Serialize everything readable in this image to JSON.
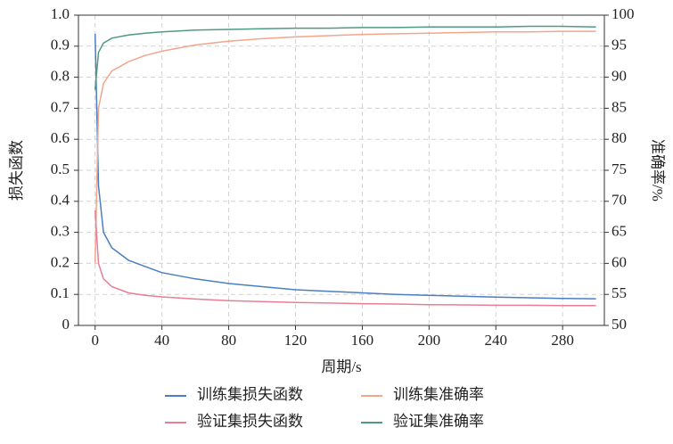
{
  "chart_data": {
    "type": "line",
    "x_label": "周期/s",
    "y_label": "损失函数",
    "y2_label": "准确率/%",
    "x": [
      0,
      2,
      5,
      10,
      20,
      30,
      40,
      60,
      80,
      100,
      120,
      140,
      160,
      180,
      200,
      220,
      240,
      260,
      280,
      300
    ],
    "series": [
      {
        "name": "训练集损失函数",
        "color": "#4a7fc1",
        "values": [
          0.94,
          0.45,
          0.3,
          0.25,
          0.21,
          0.19,
          0.17,
          0.15,
          0.135,
          0.125,
          0.115,
          0.11,
          0.105,
          0.1,
          0.097,
          0.094,
          0.091,
          0.089,
          0.087,
          0.086
        ]
      },
      {
        "name": "训练集准确率",
        "color": "#f2a68b",
        "axis": "y2",
        "values": [
          60,
          85,
          89,
          91,
          92.5,
          93.5,
          94.2,
          95.2,
          95.8,
          96.2,
          96.5,
          96.7,
          96.9,
          97,
          97.1,
          97.2,
          97.3,
          97.3,
          97.4,
          97.4
        ]
      },
      {
        "name": "验证集损失函数",
        "color": "#e87e93",
        "values": [
          0.37,
          0.2,
          0.15,
          0.125,
          0.105,
          0.097,
          0.092,
          0.085,
          0.08,
          0.077,
          0.074,
          0.072,
          0.07,
          0.069,
          0.067,
          0.066,
          0.065,
          0.065,
          0.064,
          0.064
        ]
      },
      {
        "name": "验证集准确率",
        "color": "#4e9a84",
        "axis": "y2",
        "values": [
          88,
          94,
          95.5,
          96.3,
          96.8,
          97.1,
          97.3,
          97.6,
          97.7,
          97.8,
          97.9,
          97.9,
          98,
          98,
          98.1,
          98.1,
          98.1,
          98.2,
          98.2,
          98.1
        ]
      }
    ],
    "xlim": [
      -10,
      305
    ],
    "xticks": [
      0,
      40,
      80,
      120,
      160,
      200,
      240,
      280
    ],
    "ylim": [
      0,
      1
    ],
    "yticks": [
      0,
      0.1,
      0.2,
      0.3,
      0.4,
      0.5,
      0.6,
      0.7,
      0.8,
      0.9,
      {
        "value": 1,
        "label": "1.0"
      }
    ],
    "y2lim": [
      50,
      100
    ],
    "y2ticks": [
      50,
      55,
      60,
      65,
      70,
      75,
      80,
      85,
      90,
      95,
      100
    ],
    "grid": true
  }
}
